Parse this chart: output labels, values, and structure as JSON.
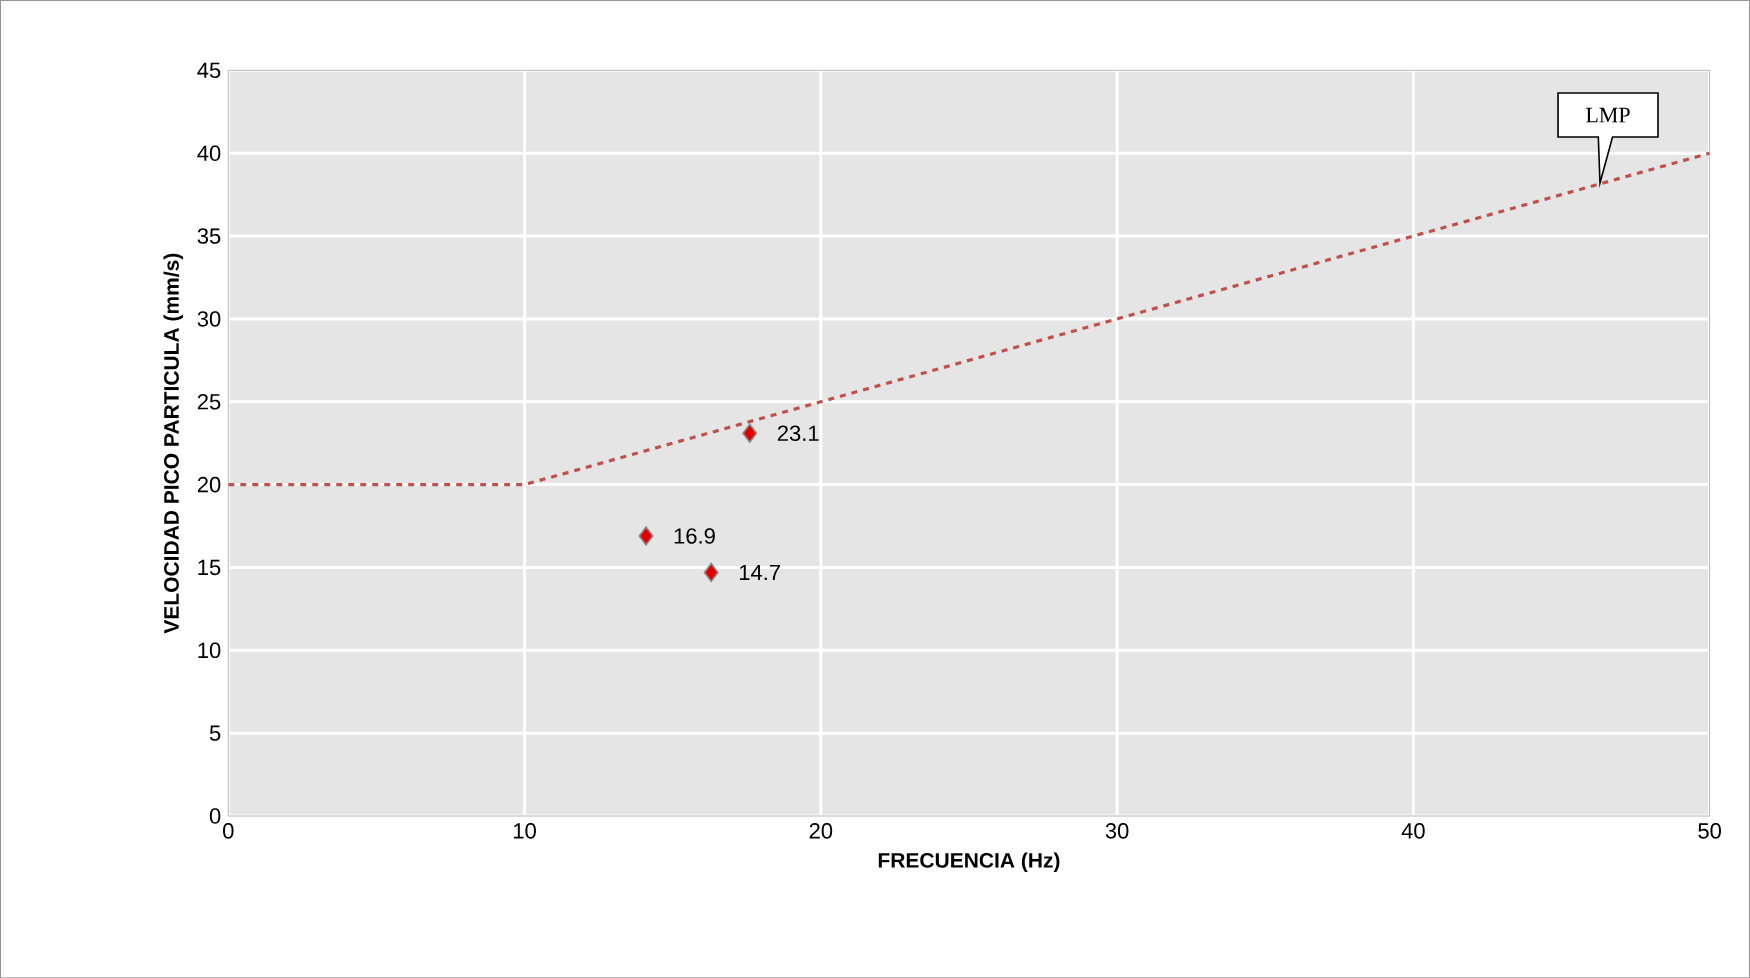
{
  "chart_data": {
    "type": "scatter",
    "xlabel": "FRECUENCIA (Hz)",
    "ylabel": "VELOCIDAD PICO PARTICULA (mm/s)",
    "xlim": [
      0,
      50
    ],
    "xticks": [
      0,
      10,
      20,
      30,
      40,
      50
    ],
    "ylim": [
      0,
      45
    ],
    "yticks": [
      0,
      5,
      10,
      15,
      20,
      25,
      30,
      35,
      40,
      45
    ],
    "grid": true,
    "series": [
      {
        "type": "line",
        "color": "#c0504d",
        "x": [
          0,
          10,
          50
        ],
        "values": [
          20,
          20,
          40
        ],
        "line_style": "dashed",
        "marker": "none"
      },
      {
        "color": "#e00000",
        "x": [
          17.6,
          14.1,
          16.3
        ],
        "values": [
          23.1,
          16.9,
          14.7
        ],
        "marker": "diamond",
        "value_labels": [
          "23.1",
          "16.9",
          "14.7"
        ]
      }
    ],
    "annotations": [
      {
        "text": "LMP",
        "x": 46.3,
        "y": 38.2
      }
    ]
  }
}
